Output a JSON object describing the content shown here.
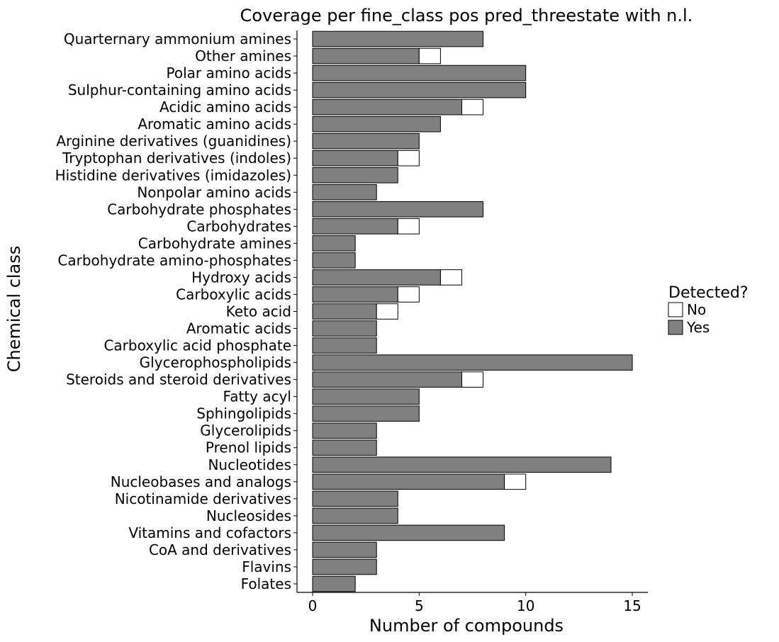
{
  "chart_data": {
    "type": "bar",
    "orientation": "horizontal",
    "stacked": true,
    "title": "Coverage per fine_class pos pred_threestate with n.l.",
    "xlabel": "Number of compounds",
    "ylabel": "Chemical class",
    "xlim": [
      0,
      15.7
    ],
    "x_ticks": [
      0,
      5,
      10,
      15
    ],
    "grid": false,
    "legend": {
      "title": "Detected?",
      "placement": "right",
      "entries": [
        {
          "name": "No",
          "color": "#ffffff"
        },
        {
          "name": "Yes",
          "color": "#808080"
        }
      ]
    },
    "categories": [
      "Quarternary ammonium amines",
      "Other amines",
      "Polar amino acids",
      "Sulphur-containing amino acids",
      "Acidic amino acids",
      "Aromatic amino acids",
      "Arginine derivatives (guanidines)",
      "Tryptophan derivatives (indoles)",
      "Histidine derivatives (imidazoles)",
      "Nonpolar amino acids",
      "Carbohydrate phosphates",
      "Carbohydrates",
      "Carbohydrate amines",
      "Carbohydrate amino-phosphates",
      "Hydroxy acids",
      "Carboxylic acids",
      "Keto acid",
      "Aromatic acids",
      "Carboxylic acid phosphate",
      "Glycerophospholipids",
      "Steroids and steroid derivatives",
      "Fatty acyl",
      "Sphingolipids",
      "Glycerolipids",
      "Prenol lipids",
      "Nucleotides",
      "Nucleobases and analogs",
      "Nicotinamide derivatives",
      "Nucleosides",
      "Vitamins and cofactors",
      "CoA and derivatives",
      "Flavins",
      "Folates"
    ],
    "series": [
      {
        "name": "Yes",
        "color": "#808080",
        "values": [
          8,
          5,
          10,
          10,
          7,
          6,
          5,
          4,
          4,
          3,
          8,
          4,
          2,
          2,
          6,
          4,
          3,
          3,
          3,
          15,
          7,
          5,
          5,
          3,
          3,
          14,
          9,
          4,
          4,
          9,
          3,
          3,
          2
        ]
      },
      {
        "name": "No",
        "color": "#ffffff",
        "values": [
          0,
          1,
          0,
          0,
          1,
          0,
          0,
          1,
          0,
          0,
          0,
          1,
          0,
          0,
          1,
          1,
          1,
          0,
          0,
          0,
          1,
          0,
          0,
          0,
          0,
          0,
          1,
          0,
          0,
          0,
          0,
          0,
          0
        ]
      }
    ]
  }
}
